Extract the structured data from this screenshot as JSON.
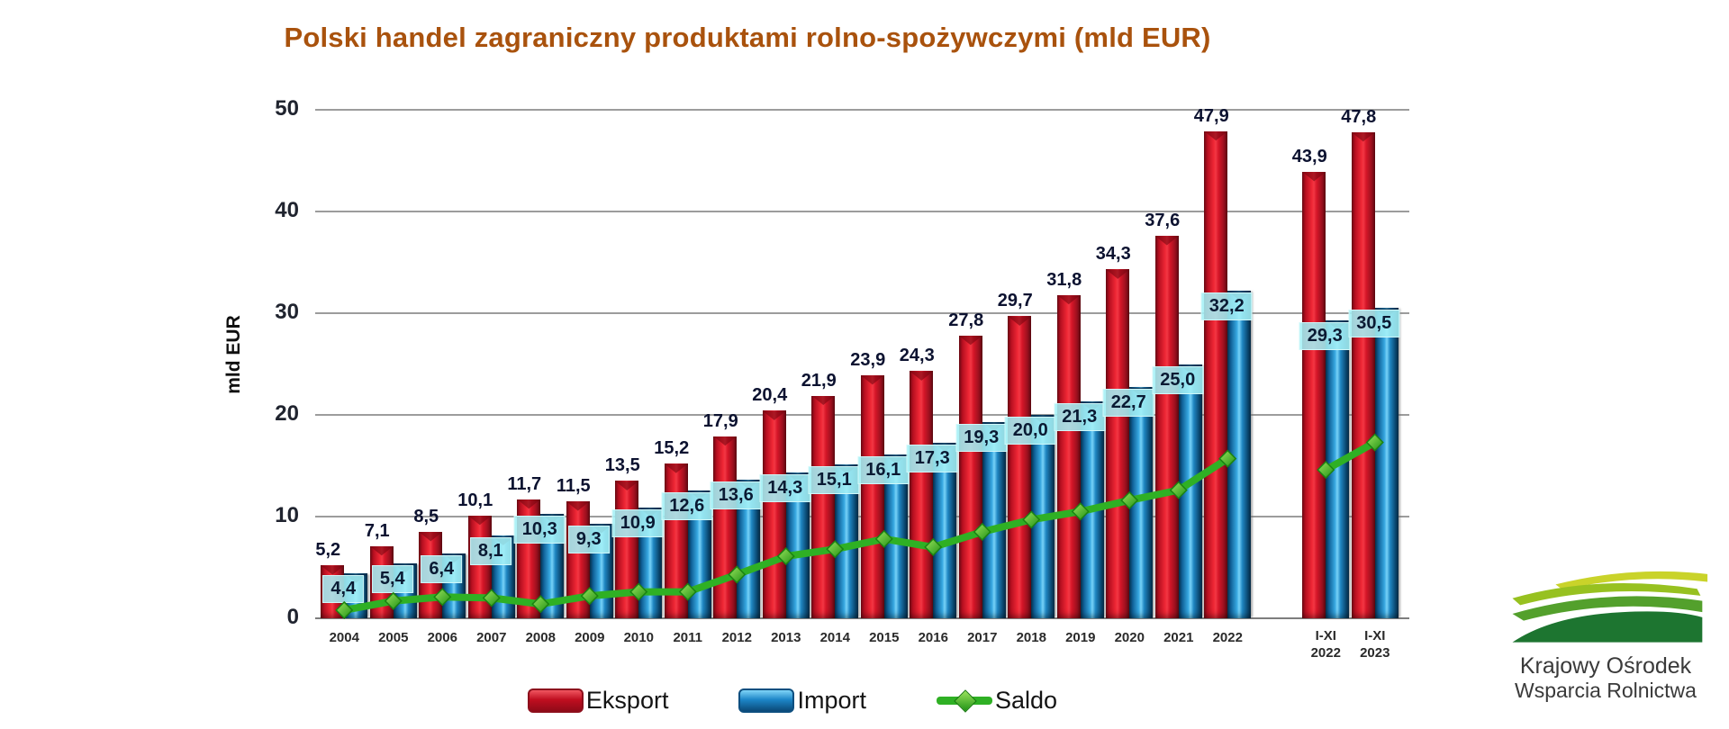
{
  "chart_data": {
    "type": "bar",
    "title": "Polski handel zagraniczny produktami rolno-spożywczymi (mld EUR)",
    "xlabel": "",
    "ylabel": "mld EUR",
    "ylim": [
      0,
      50
    ],
    "yticks": [
      0,
      10,
      20,
      30,
      40,
      50
    ],
    "grid": true,
    "legend_position": "bottom",
    "gap_after_index": 18,
    "categories": [
      "2004",
      "2005",
      "2006",
      "2007",
      "2008",
      "2009",
      "2010",
      "2011",
      "2012",
      "2013",
      "2014",
      "2015",
      "2016",
      "2017",
      "2018",
      "2019",
      "2020",
      "2021",
      "2022",
      "I-XI 2022",
      "I-XI 2023"
    ],
    "series": [
      {
        "name": "Eksport",
        "type": "bar",
        "color": "#e51a2c",
        "values": [
          5.2,
          7.1,
          8.5,
          10.1,
          11.7,
          11.5,
          13.5,
          15.2,
          17.9,
          20.4,
          21.9,
          23.9,
          24.3,
          27.8,
          29.7,
          31.8,
          34.3,
          37.6,
          47.9,
          43.9,
          47.8
        ],
        "labels": [
          "5,2",
          "7,1",
          "8,5",
          "10,1",
          "11,7",
          "11,5",
          "13,5",
          "15,2",
          "17,9",
          "20,4",
          "21,9",
          "23,9",
          "24,3",
          "27,8",
          "29,7",
          "31,8",
          "34,3",
          "37,6",
          "47,9",
          "43,9",
          "47,8"
        ]
      },
      {
        "name": "Import",
        "type": "bar",
        "color": "#1e88c9",
        "values": [
          4.4,
          5.4,
          6.4,
          8.1,
          10.3,
          9.3,
          10.9,
          12.6,
          13.6,
          14.3,
          15.1,
          16.1,
          17.3,
          19.3,
          20.0,
          21.3,
          22.7,
          25.0,
          32.2,
          29.3,
          30.5
        ],
        "labels": [
          "4,4",
          "5,4",
          "6,4",
          "8,1",
          "10,3",
          "9,3",
          "10,9",
          "12,6",
          "13,6",
          "14,3",
          "15,1",
          "16,1",
          "17,3",
          "19,3",
          "20,0",
          "21,3",
          "22,7",
          "25,0",
          "32,2",
          "29,3",
          "30,5"
        ]
      },
      {
        "name": "Saldo",
        "type": "line",
        "color": "#2fb024",
        "split_after_index": 18,
        "values": [
          0.8,
          1.7,
          2.1,
          2.0,
          1.4,
          2.2,
          2.6,
          2.6,
          4.3,
          6.1,
          6.8,
          7.8,
          7.0,
          8.5,
          9.7,
          10.5,
          11.6,
          12.6,
          15.7,
          14.6,
          17.3
        ]
      }
    ]
  },
  "logo": {
    "line1": "Krajowy Ośrodek",
    "line2": "Wsparcia Rolnictwa"
  },
  "colors": {
    "title": "#a9520d",
    "eksport": "#e51a2c",
    "import": "#1e88c9",
    "saldo": "#2fb024",
    "import_label_bg": "#a4f0f6",
    "gridline": "#9c9c9c"
  }
}
